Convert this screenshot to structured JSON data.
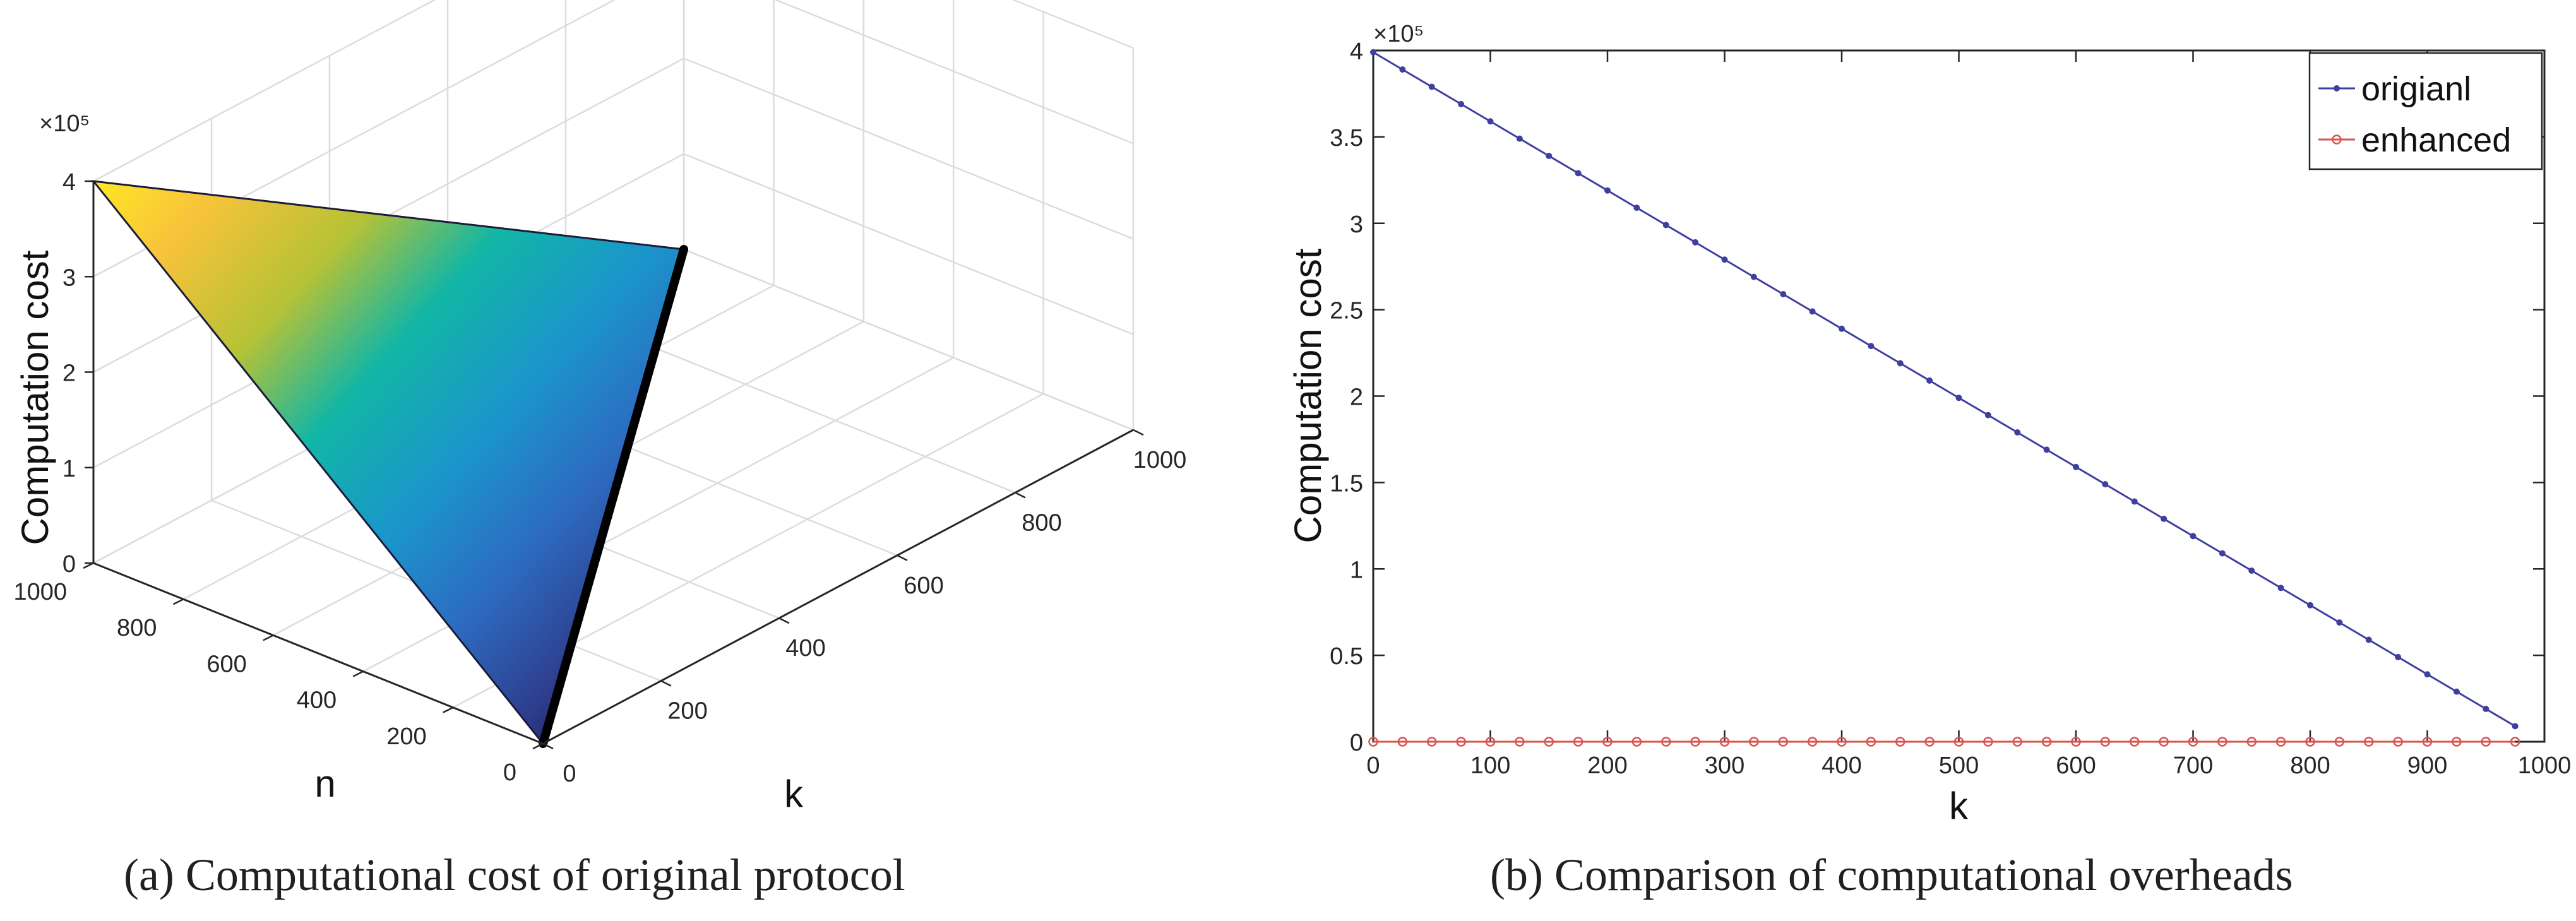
{
  "figure": {
    "caption_a": "(a) Computational cost of  original protocol",
    "caption_b": "(b) Comparison of  computational overheads"
  },
  "chart_data": [
    {
      "type": "surface",
      "zlabel": "Computation cost",
      "xlabel": "k",
      "ylabel": "n",
      "z_exponent_label": "×10⁵",
      "x_ticks": [
        "0",
        "200",
        "400",
        "600",
        "800",
        "1000"
      ],
      "y_ticks": [
        "0",
        "200",
        "400",
        "600",
        "800",
        "1000"
      ],
      "z_ticks": [
        "0",
        "1",
        "2",
        "3",
        "4"
      ],
      "xlim": [
        0,
        1000
      ],
      "ylim": [
        0,
        1000
      ],
      "zlim": [
        0,
        400000
      ],
      "surface": {
        "description_vertices": [
          {
            "k": 0,
            "n": 1000,
            "cost": 400000
          },
          {
            "k": 0,
            "n": 0,
            "cost": 0
          },
          {
            "k": 1000,
            "n": 1000,
            "cost": 0
          }
        ],
        "colormap": [
          "#fde725",
          "#f8c33a",
          "#b6c236",
          "#12b6a5",
          "#1b95cc",
          "#2d6bc0",
          "#2e3d8c",
          "#0b1138"
        ]
      },
      "grid": true
    },
    {
      "type": "line",
      "xlabel": "k",
      "ylabel": "Computation cost",
      "y_exponent_label": "×10⁵",
      "xlim": [
        0,
        1000
      ],
      "ylim": [
        0,
        400000
      ],
      "x_ticks": [
        "0",
        "100",
        "200",
        "300",
        "400",
        "500",
        "600",
        "700",
        "800",
        "900",
        "1000"
      ],
      "y_ticks": [
        "0",
        "0.5",
        "1",
        "1.5",
        "2",
        "2.5",
        "3",
        "3.5",
        "4"
      ],
      "legend_position": "top-right",
      "x": [
        0,
        25,
        50,
        75,
        100,
        125,
        150,
        175,
        200,
        225,
        250,
        275,
        300,
        325,
        350,
        375,
        400,
        425,
        450,
        475,
        500,
        525,
        550,
        575,
        600,
        625,
        650,
        675,
        700,
        725,
        750,
        775,
        800,
        825,
        850,
        875,
        900,
        925,
        950,
        975
      ],
      "series": [
        {
          "name": "origianl",
          "color": "#3f3fa0",
          "marker": "dot",
          "values": [
            399000,
            389000,
            379000,
            369000,
            359000,
            349000,
            339000,
            329000,
            319000,
            309000,
            299000,
            289000,
            279000,
            269000,
            259000,
            249000,
            239000,
            229000,
            219000,
            209000,
            199000,
            189000,
            179000,
            169000,
            159000,
            149000,
            139000,
            129000,
            119000,
            109000,
            99000,
            89000,
            79000,
            69000,
            59000,
            49000,
            39000,
            29000,
            19000,
            9000
          ]
        },
        {
          "name": "enhanced",
          "color": "#d9534f",
          "marker": "circle",
          "values": [
            0,
            0,
            0,
            0,
            0,
            0,
            0,
            0,
            0,
            0,
            0,
            0,
            0,
            0,
            0,
            0,
            0,
            0,
            0,
            0,
            0,
            0,
            0,
            0,
            0,
            0,
            0,
            0,
            0,
            0,
            0,
            0,
            0,
            0,
            0,
            0,
            0,
            0,
            0,
            0
          ]
        }
      ]
    }
  ]
}
